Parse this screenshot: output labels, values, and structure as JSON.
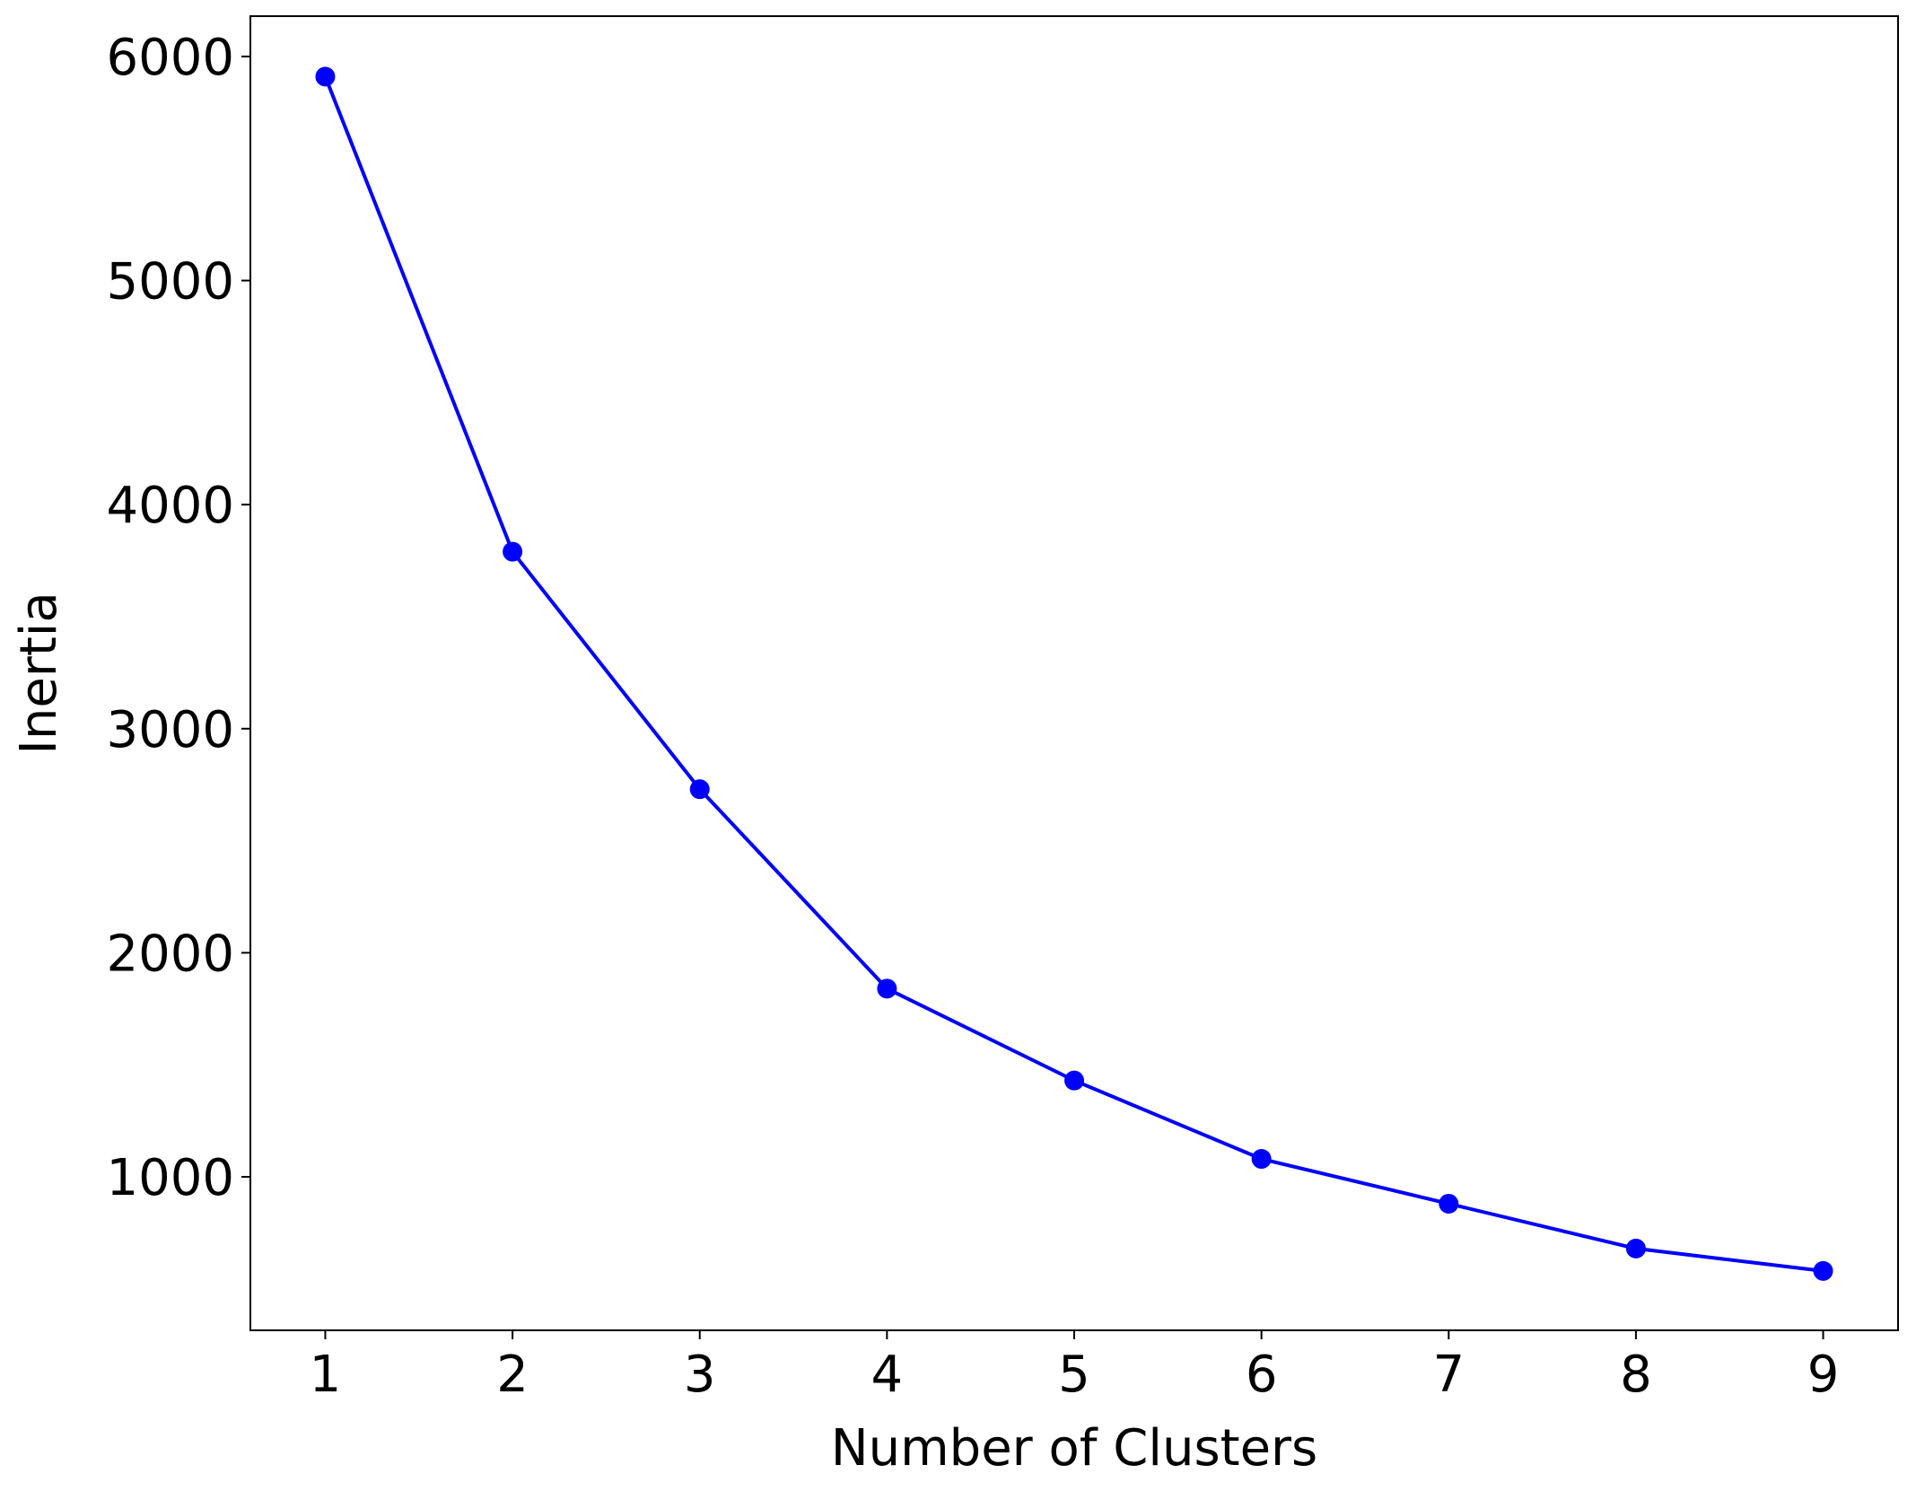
{
  "chart_data": {
    "type": "line",
    "xlabel": "Number of Clusters",
    "ylabel": "Inertia",
    "x": [
      1,
      2,
      3,
      4,
      5,
      6,
      7,
      8,
      9
    ],
    "series": [
      {
        "color": "#0000ff",
        "values": [
          5910,
          3790,
          2730,
          1840,
          1430,
          1080,
          880,
          680,
          580
        ]
      }
    ],
    "xlim": [
      0.6,
      9.4
    ],
    "xticks": [
      1,
      2,
      3,
      4,
      5,
      6,
      7,
      8,
      9
    ],
    "ylim": [
      315,
      6180
    ],
    "yticks": [
      1000,
      2000,
      3000,
      4000,
      5000,
      6000
    ],
    "markers": true
  }
}
